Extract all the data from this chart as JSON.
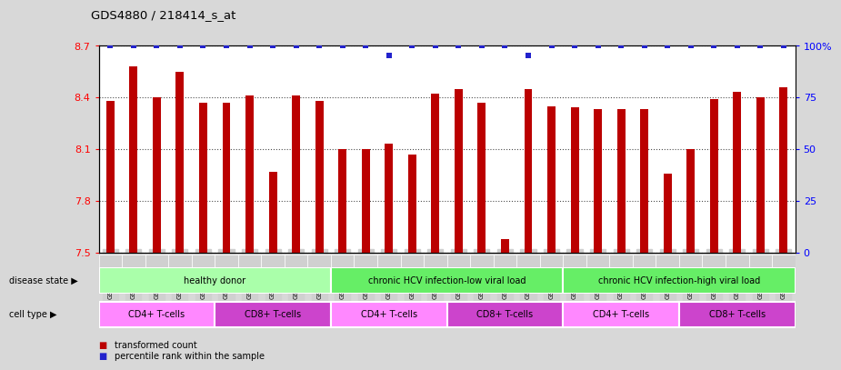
{
  "title": "GDS4880 / 218414_s_at",
  "samples": [
    "GSM1210739",
    "GSM1210740",
    "GSM1210741",
    "GSM1210742",
    "GSM1210743",
    "GSM1210754",
    "GSM1210755",
    "GSM1210756",
    "GSM1210757",
    "GSM1210758",
    "GSM1210745",
    "GSM1210750",
    "GSM1210751",
    "GSM1210752",
    "GSM1210753",
    "GSM1210760",
    "GSM1210765",
    "GSM1210766",
    "GSM1210767",
    "GSM1210768",
    "GSM1210744",
    "GSM1210746",
    "GSM1210747",
    "GSM1210748",
    "GSM1210749",
    "GSM1210759",
    "GSM1210761",
    "GSM1210762",
    "GSM1210763",
    "GSM1210764"
  ],
  "bar_values": [
    8.38,
    8.58,
    8.4,
    8.55,
    8.37,
    8.37,
    8.41,
    7.97,
    8.41,
    8.38,
    8.1,
    8.1,
    8.13,
    8.07,
    8.42,
    8.45,
    8.37,
    7.58,
    8.45,
    8.35,
    8.34,
    8.33,
    8.33,
    8.33,
    7.96,
    8.1,
    8.39,
    8.43,
    8.4,
    8.46
  ],
  "percentile_values": [
    100,
    100,
    100,
    100,
    100,
    100,
    100,
    100,
    100,
    100,
    100,
    100,
    95,
    100,
    100,
    100,
    100,
    100,
    95,
    100,
    100,
    100,
    100,
    100,
    100,
    100,
    100,
    100,
    100,
    100
  ],
  "bar_color": "#bb0000",
  "percentile_color": "#2222cc",
  "ylim_left": [
    7.5,
    8.7
  ],
  "ylim_right": [
    0,
    100
  ],
  "yticks_left": [
    7.5,
    7.8,
    8.1,
    8.4,
    8.7
  ],
  "yticks_right": [
    0,
    25,
    50,
    75,
    100
  ],
  "disease_groups": [
    {
      "label": "healthy donor",
      "start": 0,
      "end": 9,
      "color": "#aaffaa"
    },
    {
      "label": "chronic HCV infection-low viral load",
      "start": 10,
      "end": 19,
      "color": "#66ee66"
    },
    {
      "label": "chronic HCV infection-high viral load",
      "start": 20,
      "end": 29,
      "color": "#66ee66"
    }
  ],
  "cell_type_groups": [
    {
      "label": "CD4+ T-cells",
      "start": 0,
      "end": 4,
      "color": "#ff88ff"
    },
    {
      "label": "CD8+ T-cells",
      "start": 5,
      "end": 9,
      "color": "#cc44cc"
    },
    {
      "label": "CD4+ T-cells",
      "start": 10,
      "end": 14,
      "color": "#ff88ff"
    },
    {
      "label": "CD8+ T-cells",
      "start": 15,
      "end": 19,
      "color": "#cc44cc"
    },
    {
      "label": "CD4+ T-cells",
      "start": 20,
      "end": 24,
      "color": "#ff88ff"
    },
    {
      "label": "CD8+ T-cells",
      "start": 25,
      "end": 29,
      "color": "#cc44cc"
    }
  ],
  "disease_state_label": "disease state",
  "cell_type_label": "cell type",
  "legend_transformed": "transformed count",
  "legend_percentile": "percentile rank within the sample",
  "bg_color": "#d8d8d8",
  "plot_bg_color": "#ffffff",
  "tick_label_bg": "#d0d0d0"
}
